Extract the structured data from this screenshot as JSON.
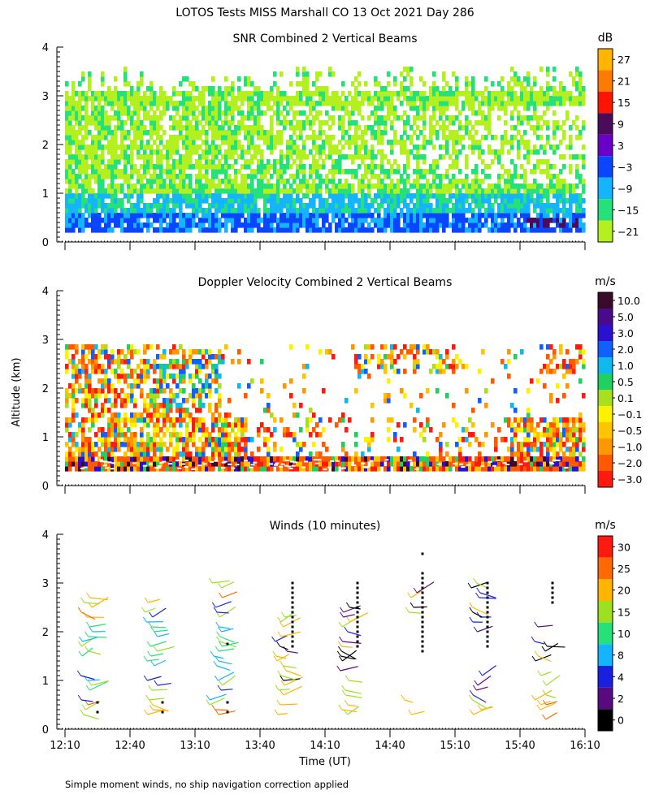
{
  "figure": {
    "title": "LOTOS Tests MISS Marshall CO  13 Oct 2021 Day 286",
    "ylabel": "Altitude (km)",
    "xlabel": "Time (UT)",
    "footnote": "Simple moment winds, no ship navigation correction applied"
  },
  "chart_data": [
    {
      "type": "heatmap",
      "title": "SNR Combined 2 Vertical Beams",
      "ylabel": "Altitude (km)",
      "xlabel": "",
      "xlim": [
        0,
        240
      ],
      "ylim": [
        0,
        4
      ],
      "x_ticks": [
        0,
        30,
        60,
        90,
        120,
        150,
        180,
        210,
        240
      ],
      "x_tick_labels": [
        "",
        "",
        "",
        "",
        "",
        "",
        "",
        "",
        ""
      ],
      "y_ticks": [
        "0",
        "1",
        "2",
        "3",
        "4"
      ],
      "colorbar": {
        "unit": "dB",
        "labels": [
          "27",
          "21",
          "15",
          "9",
          "3",
          "−3",
          "−9",
          "−15",
          "−21"
        ],
        "colors": [
          "#ffb400",
          "#ff7a00",
          "#ff1400",
          "#4a0b5a",
          "#6a00c8",
          "#0a46ff",
          "#14b4ff",
          "#26e07a",
          "#b4f020"
        ]
      },
      "description_values": {
        "low_level_band_km": [
          0.2,
          0.65
        ],
        "typical_low_level_db": [
          -9,
          3
        ],
        "echo_top_km": 3.2
      }
    },
    {
      "type": "heatmap",
      "title": "Doppler Velocity Combined 2 Vertical Beams",
      "ylabel": "Altitude (km)",
      "xlabel": "",
      "xlim": [
        0,
        240
      ],
      "ylim": [
        0,
        4
      ],
      "x_ticks": [
        0,
        30,
        60,
        90,
        120,
        150,
        180,
        210,
        240
      ],
      "x_tick_labels": [
        "",
        "",
        "",
        "",
        "",
        "",
        "",
        "",
        ""
      ],
      "y_ticks": [
        "0",
        "1",
        "2",
        "3",
        "4"
      ],
      "colorbar": {
        "unit": "m/s",
        "labels": [
          "10.0",
          "5.0",
          "3.0",
          "2.0",
          "1.0",
          "0.5",
          "0.1",
          "−0.1",
          "−0.5",
          "−1.0",
          "−2.0",
          "−3.0"
        ],
        "colors": [
          "#3a0a2a",
          "#4a0a8a",
          "#2a10d0",
          "#1060ff",
          "#10b8f0",
          "#20d060",
          "#a8e020",
          "#fff200",
          "#ffc400",
          "#ff9800",
          "#ff5a00",
          "#ff1a10"
        ]
      },
      "description_values": {
        "echo_top_km": 2.9,
        "ground_clutter_km": [
          0.3,
          0.6
        ]
      }
    },
    {
      "type": "scatter",
      "title": "Winds (10 minutes)",
      "ylabel": "Altitude (km)",
      "xlabel": "Time (UT)",
      "xlim": [
        0,
        240
      ],
      "ylim": [
        0,
        4
      ],
      "x_ticks": [
        0,
        30,
        60,
        90,
        120,
        150,
        180,
        210,
        240
      ],
      "x_tick_labels": [
        "12:10",
        "12:40",
        "13:10",
        "13:40",
        "14:10",
        "14:40",
        "15:10",
        "15:40",
        "16:10"
      ],
      "y_ticks": [
        "0",
        "1",
        "2",
        "3",
        "4"
      ],
      "colorbar": {
        "unit": "m/s",
        "labels": [
          "30",
          "25",
          "20",
          "15",
          "10",
          "8",
          "4",
          "2",
          "0"
        ],
        "colors": [
          "#ff1a10",
          "#ff6a00",
          "#ffb400",
          "#9ce020",
          "#26e07a",
          "#14b4ff",
          "#1a20e0",
          "#5a0a80",
          "#000000"
        ]
      },
      "profile_times_min": [
        15,
        45,
        75,
        105,
        135,
        165,
        195,
        225
      ],
      "profiles": [
        {
          "time": 15,
          "top_km": 0.55,
          "dots": [
            0.35,
            0.55
          ],
          "gaps": [],
          "wind_ranges_km": [
            [
              0.3,
              0.6
            ],
            [
              0.8,
              2.75
            ]
          ],
          "speed_band": "10-25"
        },
        {
          "time": 45,
          "top_km": 0.55,
          "dots": [
            0.35,
            0.55
          ],
          "gaps": [],
          "wind_ranges_km": [
            [
              0.3,
              0.6
            ],
            [
              0.8,
              2.7
            ]
          ],
          "speed_band": "8-25"
        },
        {
          "time": 75,
          "top_km": 0.55,
          "dots": [
            0.35,
            0.55,
            1.75
          ],
          "gaps": [],
          "wind_ranges_km": [
            [
              0.3,
              0.6
            ],
            [
              0.8,
              3.1
            ]
          ],
          "speed_band": "2-25"
        },
        {
          "time": 105,
          "top_km": 3.0,
          "dots_range_km": [
            1.7,
            3.0
          ],
          "wind_ranges_km": [
            [
              0.3,
              0.6
            ],
            [
              0.7,
              2.4
            ]
          ],
          "speed_band": "0-20"
        },
        {
          "time": 135,
          "top_km": 3.0,
          "dots_range_km": [
            1.7,
            3.0
          ],
          "wind_ranges_km": [
            [
              0.3,
              0.6
            ],
            [
              0.7,
              2.6
            ]
          ],
          "speed_band": "0-20"
        },
        {
          "time": 165,
          "top_km": 3.6,
          "dots_range_km": [
            1.6,
            3.2
          ],
          "wind_ranges_km": [
            [
              0.3,
              0.6
            ],
            [
              2.4,
              2.9
            ]
          ],
          "speed_band": "0-20"
        },
        {
          "time": 195,
          "top_km": 3.0,
          "dots_range_km": [
            1.7,
            3.0
          ],
          "wind_ranges_km": [
            [
              0.3,
              0.6
            ],
            [
              0.7,
              1.1
            ],
            [
              2.0,
              3.1
            ]
          ],
          "speed_band": "0-20"
        },
        {
          "time": 225,
          "top_km": 3.0,
          "dots_range_km": [
            2.6,
            3.0
          ],
          "wind_ranges_km": [
            [
              0.1,
              0.6
            ],
            [
              0.5,
              1.1
            ],
            [
              1.4,
              1.9
            ],
            [
              2.1,
              2.5
            ]
          ],
          "speed_band": "0-20"
        }
      ]
    }
  ]
}
